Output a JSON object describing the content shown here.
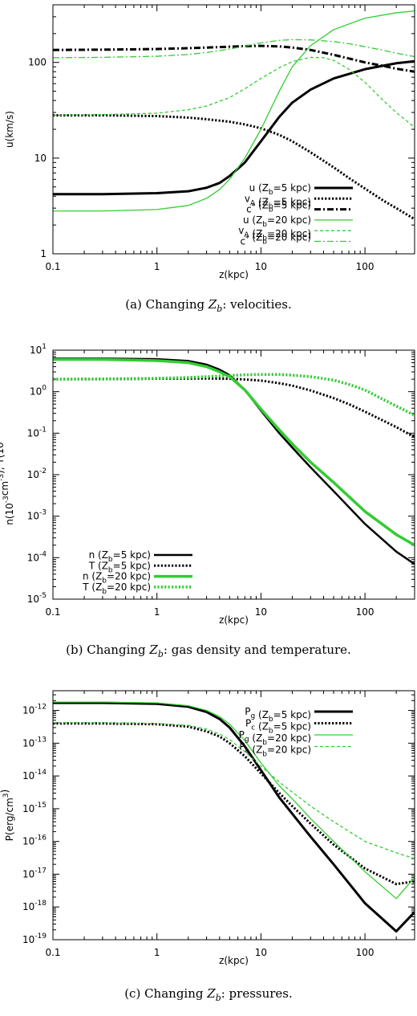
{
  "colors": {
    "black": "#000000",
    "green": "#33cc33"
  },
  "xticks": [
    {
      "v": 0.1,
      "label": "0.1"
    },
    {
      "v": 1,
      "label": "1"
    },
    {
      "v": 10,
      "label": "10"
    },
    {
      "v": 100,
      "label": "100"
    }
  ],
  "chart_data": [
    {
      "type": "line",
      "id": "velocities",
      "caption": {
        "prefix": "(a) Changing ",
        "var": "Z",
        "sub": "b",
        "suffix": ": velocities."
      },
      "xlabel": "z(kpc)",
      "ylabel": "u(km/s)",
      "xscale": "log",
      "yscale": "log",
      "xlim": [
        0.1,
        300
      ],
      "ylim": [
        1,
        400
      ],
      "legend_position": "lower-right",
      "yticks": [
        {
          "v": 1,
          "label": "1"
        },
        {
          "v": 10,
          "label": "10"
        },
        {
          "v": 100,
          "label": "100"
        }
      ],
      "series": [
        {
          "name": "u (Z_b=5 kpc)",
          "legend": {
            "main": "u (Z",
            "sub": "b",
            "rest": "=5 kpc)"
          },
          "color": "black",
          "style": "solid",
          "width": 3,
          "x": [
            0.1,
            0.3,
            1,
            2,
            3,
            4,
            5,
            7,
            10,
            15,
            20,
            30,
            50,
            100,
            200,
            300
          ],
          "y": [
            4.2,
            4.2,
            4.3,
            4.5,
            4.9,
            5.5,
            6.5,
            9,
            15,
            27,
            38,
            52,
            68,
            85,
            98,
            103
          ]
        },
        {
          "name": "v_A (Z_b=5 kpc)",
          "legend": {
            "main": "v",
            "msub": "A",
            "mid": " (Z",
            "sub": "b",
            "rest": "=5 kpc)"
          },
          "color": "black",
          "style": "dotted",
          "width": 3,
          "x": [
            0.1,
            0.3,
            1,
            2,
            3,
            5,
            7,
            10,
            15,
            20,
            30,
            50,
            70,
            100,
            150,
            200,
            300
          ],
          "y": [
            28,
            28,
            27.5,
            26.5,
            25.5,
            24,
            22.5,
            20.5,
            17.5,
            15,
            11.5,
            8,
            6.2,
            4.8,
            3.6,
            3,
            2.3
          ]
        },
        {
          "name": "c* (Z_b=5 kpc)",
          "legend": {
            "main": "c",
            "sup": "*",
            "mid": " (Z",
            "sub": "b",
            "rest": "=5 kpc)"
          },
          "color": "black",
          "style": "dashdot",
          "width": 3,
          "x": [
            0.1,
            0.3,
            1,
            2,
            3,
            5,
            7,
            10,
            15,
            20,
            30,
            50,
            70,
            100,
            150,
            200,
            300
          ],
          "y": [
            135,
            136,
            138,
            141,
            143,
            146,
            148,
            149,
            147,
            143,
            135,
            120,
            110,
            100,
            92,
            86,
            80
          ]
        },
        {
          "name": "u (Z_b=20 kpc)",
          "legend": {
            "main": "u (Z",
            "sub": "b",
            "rest": "=20 kpc)"
          },
          "color": "green",
          "style": "solid",
          "width": 1.3,
          "x": [
            0.1,
            0.3,
            1,
            2,
            3,
            4,
            5,
            7,
            10,
            15,
            20,
            30,
            50,
            100,
            200,
            300
          ],
          "y": [
            2.8,
            2.8,
            2.9,
            3.2,
            3.8,
            4.7,
            6,
            10,
            20,
            50,
            90,
            150,
            220,
            290,
            330,
            345
          ]
        },
        {
          "name": "v_A (Z_b=20 kpc)",
          "legend": {
            "main": "v",
            "msub": "A",
            "mid": " (Z",
            "sub": "b",
            "rest": "=20 kpc)"
          },
          "color": "green",
          "style": "dashed",
          "width": 1.3,
          "x": [
            0.1,
            0.3,
            1,
            2,
            3,
            5,
            7,
            10,
            15,
            20,
            30,
            40,
            50,
            70,
            100,
            150,
            200,
            300
          ],
          "y": [
            28,
            28.5,
            29.5,
            32,
            35,
            43,
            53,
            68,
            88,
            102,
            113,
            112,
            105,
            85,
            62,
            40,
            30,
            21
          ]
        },
        {
          "name": "c* (Z_b=20 kpc)",
          "legend": {
            "main": "c",
            "sup": "*",
            "mid": " (Z",
            "sub": "b",
            "rest": "=20 kpc)"
          },
          "color": "green",
          "style": "dashdot",
          "width": 1.3,
          "x": [
            0.1,
            0.3,
            1,
            2,
            3,
            5,
            7,
            10,
            15,
            20,
            30,
            50,
            70,
            100,
            150,
            200,
            300
          ],
          "y": [
            112,
            113,
            116,
            121,
            127,
            138,
            148,
            160,
            170,
            173,
            172,
            165,
            157,
            146,
            134,
            125,
            115
          ]
        }
      ]
    },
    {
      "type": "line",
      "id": "density-temperature",
      "caption": {
        "prefix": "(b) Changing ",
        "var": "Z",
        "sub": "b",
        "suffix": ": gas density and temperature."
      },
      "xlabel": "z(kpc)",
      "ylabel": "n(10^-3cm^-3), T(10^6 K)",
      "xscale": "log",
      "yscale": "log",
      "xlim": [
        0.1,
        300
      ],
      "ylim": [
        1e-05,
        10
      ],
      "legend_position": "lower-left",
      "yticks": [
        {
          "v": 1e-05,
          "base": "10",
          "exp": "-5"
        },
        {
          "v": 0.0001,
          "base": "10",
          "exp": "-4"
        },
        {
          "v": 0.001,
          "base": "10",
          "exp": "-3"
        },
        {
          "v": 0.01,
          "base": "10",
          "exp": "-2"
        },
        {
          "v": 0.1,
          "base": "10",
          "exp": "-1"
        },
        {
          "v": 1,
          "base": "10",
          "exp": "0"
        },
        {
          "v": 10,
          "base": "10",
          "exp": "1"
        }
      ],
      "series": [
        {
          "name": "n (Z_b=5 kpc)",
          "legend": {
            "main": "n (Z",
            "sub": "b",
            "rest": "=5 kpc)"
          },
          "color": "black",
          "style": "solid",
          "width": 2.5,
          "x": [
            0.1,
            0.3,
            1,
            2,
            3,
            4,
            5,
            7,
            10,
            15,
            20,
            30,
            50,
            100,
            200,
            300
          ],
          "y": [
            6.3,
            6.3,
            6.1,
            5.5,
            4.5,
            3.4,
            2.5,
            1.1,
            0.35,
            0.1,
            0.045,
            0.015,
            0.004,
            0.00065,
            0.00014,
            7e-05
          ]
        },
        {
          "name": "T (Z_b=5 kpc)",
          "legend": {
            "main": "T (Z",
            "sub": "b",
            "rest": "=5 kpc)"
          },
          "color": "black",
          "style": "dotted",
          "width": 3,
          "x": [
            0.1,
            0.3,
            1,
            2,
            3,
            5,
            7,
            10,
            15,
            20,
            30,
            50,
            70,
            100,
            150,
            200,
            300
          ],
          "y": [
            2.0,
            2.0,
            2.05,
            2.07,
            2.08,
            2.05,
            1.97,
            1.85,
            1.6,
            1.4,
            1.07,
            0.7,
            0.5,
            0.33,
            0.2,
            0.14,
            0.08
          ]
        },
        {
          "name": "n (Z_b=20 kpc)",
          "legend": {
            "main": "n (Z",
            "sub": "b",
            "rest": "=20 kpc)"
          },
          "color": "green",
          "style": "solid",
          "width": 3.5,
          "x": [
            0.1,
            0.3,
            1,
            2,
            3,
            4,
            5,
            7,
            10,
            15,
            20,
            30,
            50,
            100,
            200,
            300
          ],
          "y": [
            6.0,
            6.0,
            5.6,
            5.0,
            4.0,
            3.0,
            2.3,
            1.1,
            0.38,
            0.12,
            0.055,
            0.02,
            0.0065,
            0.0013,
            0.00036,
            0.0002
          ]
        },
        {
          "name": "T (Z_b=20 kpc)",
          "legend": {
            "main": "T (Z",
            "sub": "b",
            "rest": "=20 kpc)"
          },
          "color": "green",
          "style": "dotted",
          "width": 3.5,
          "x": [
            0.1,
            0.3,
            1,
            2,
            3,
            5,
            7,
            10,
            15,
            20,
            30,
            50,
            70,
            100,
            150,
            200,
            300
          ],
          "y": [
            2.0,
            2.03,
            2.1,
            2.2,
            2.3,
            2.45,
            2.55,
            2.6,
            2.6,
            2.5,
            2.3,
            1.9,
            1.5,
            1.1,
            0.65,
            0.45,
            0.27
          ]
        }
      ]
    },
    {
      "type": "line",
      "id": "pressures",
      "caption": {
        "prefix": "(c) Changing ",
        "var": "Z",
        "sub": "b",
        "suffix": ": pressures."
      },
      "xlabel": "z(kpc)",
      "ylabel": "P(erg/cm^3)",
      "xscale": "log",
      "yscale": "log",
      "xlim": [
        0.1,
        300
      ],
      "ylim": [
        1e-19,
        4e-12
      ],
      "legend_position": "top-right",
      "yticks": [
        {
          "v": 1e-19,
          "base": "10",
          "exp": "-19"
        },
        {
          "v": 1e-18,
          "base": "10",
          "exp": "-18"
        },
        {
          "v": 1e-17,
          "base": "10",
          "exp": "-17"
        },
        {
          "v": 1e-16,
          "base": "10",
          "exp": "-16"
        },
        {
          "v": 1e-15,
          "base": "10",
          "exp": "-15"
        },
        {
          "v": 1e-14,
          "base": "10",
          "exp": "-14"
        },
        {
          "v": 1e-13,
          "base": "10",
          "exp": "-13"
        },
        {
          "v": 1e-12,
          "base": "10",
          "exp": "-12"
        }
      ],
      "series": [
        {
          "name": "P_g (Z_b=5 kpc)",
          "legend": {
            "main": "P",
            "msub": "g",
            "mid": " (Z",
            "sub": "b",
            "rest": "=5 kpc)"
          },
          "color": "black",
          "style": "solid",
          "width": 3,
          "x": [
            0.1,
            0.3,
            1,
            2,
            3,
            4,
            5,
            7,
            10,
            15,
            20,
            30,
            50,
            100,
            200,
            300
          ],
          "y": [
            1.7e-12,
            1.7e-12,
            1.6e-12,
            1.3e-12,
            9e-13,
            5.5e-13,
            3e-13,
            8e-14,
            1.5e-14,
            2.2e-15,
            7e-16,
            1.4e-16,
            2e-17,
            1.3e-18,
            1.8e-19,
            7e-19
          ]
        },
        {
          "name": "P_c (Z_b=5 kpc)",
          "legend": {
            "main": "P",
            "msub": "c",
            "mid": " (Z",
            "sub": "b",
            "rest": "=5 kpc)"
          },
          "color": "black",
          "style": "dotted",
          "width": 3,
          "x": [
            0.1,
            0.3,
            1,
            2,
            3,
            4,
            5,
            7,
            10,
            15,
            20,
            30,
            50,
            100,
            200,
            300
          ],
          "y": [
            4e-13,
            4e-13,
            3.8e-13,
            3.2e-13,
            2.3e-13,
            1.6e-13,
            1e-13,
            4e-14,
            1.2e-14,
            3e-15,
            1.2e-15,
            3.5e-16,
            8e-17,
            1.5e-17,
            5e-18,
            6e-18
          ]
        },
        {
          "name": "P_g (Z_b=20 kpc)",
          "legend": {
            "main": "P",
            "msub": "g",
            "mid": " (Z",
            "sub": "b",
            "rest": "=20 kpc)"
          },
          "color": "green",
          "style": "solid",
          "width": 1.3,
          "x": [
            0.1,
            0.3,
            1,
            2,
            3,
            4,
            5,
            7,
            10,
            15,
            20,
            30,
            50,
            100,
            200,
            300
          ],
          "y": [
            1.8e-12,
            1.8e-12,
            1.7e-12,
            1.4e-12,
            1e-12,
            6.5e-13,
            3.8e-13,
            1.2e-13,
            2.5e-14,
            5e-15,
            2e-15,
            5e-16,
            1e-16,
            1.2e-17,
            1.8e-18,
            8e-18
          ]
        },
        {
          "name": "P_c (Z_b=20 kpc)",
          "legend": {
            "main": "P",
            "msub": "c",
            "mid": " (Z",
            "sub": "b",
            "rest": "=20 kpc)"
          },
          "color": "green",
          "style": "dashed",
          "width": 1.3,
          "x": [
            0.1,
            0.3,
            1,
            2,
            3,
            4,
            5,
            7,
            10,
            15,
            20,
            30,
            50,
            100,
            200,
            300
          ],
          "y": [
            4.2e-13,
            4.2e-13,
            4e-13,
            3.5e-13,
            2.7e-13,
            1.9e-13,
            1.3e-13,
            5.5e-14,
            2e-14,
            6.5e-15,
            3.2e-15,
            1.2e-15,
            4e-16,
            1e-16,
            4.5e-17,
            3e-17
          ]
        }
      ]
    }
  ]
}
